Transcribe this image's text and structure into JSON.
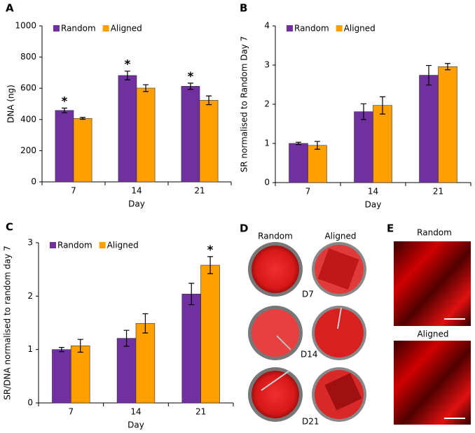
{
  "chart_data": [
    {
      "type": "bar",
      "panel_label": "A",
      "ylabel": "DNA (ng)",
      "xlabel": "Day",
      "categories": [
        "7",
        "14",
        "21"
      ],
      "series": [
        {
          "name": "Random",
          "color": "#7030a0",
          "values": [
            458,
            682,
            613
          ],
          "errors": [
            15,
            28,
            20
          ],
          "annotations": [
            "*",
            "*",
            "*"
          ]
        },
        {
          "name": "Aligned",
          "color": "#ffa000",
          "values": [
            407,
            601,
            523
          ],
          "errors": [
            6,
            22,
            28
          ]
        }
      ],
      "ylim": [
        0,
        1000
      ],
      "yticks": [
        0,
        200,
        400,
        600,
        800,
        1000
      ],
      "legend": "top-left"
    },
    {
      "type": "bar",
      "panel_label": "B",
      "ylabel": "SR normalised to Random Day 7",
      "xlabel": "Day",
      "categories": [
        "7",
        "14",
        "21"
      ],
      "series": [
        {
          "name": "Random",
          "color": "#7030a0",
          "values": [
            1.0,
            1.81,
            2.74
          ],
          "errors": [
            0.03,
            0.2,
            0.25
          ]
        },
        {
          "name": "Aligned",
          "color": "#ffa000",
          "values": [
            0.95,
            1.97,
            2.96
          ],
          "errors": [
            0.1,
            0.22,
            0.08
          ]
        }
      ],
      "ylim": [
        0,
        4
      ],
      "yticks": [
        0,
        1,
        2,
        3,
        4
      ],
      "legend": "top-left"
    },
    {
      "type": "bar",
      "panel_label": "C",
      "ylabel": "SR/DNA normalised to random day 7",
      "xlabel": "Day",
      "categories": [
        "7",
        "14",
        "21"
      ],
      "series": [
        {
          "name": "Random",
          "color": "#7030a0",
          "values": [
            1.0,
            1.21,
            2.04
          ],
          "errors": [
            0.04,
            0.15,
            0.2
          ]
        },
        {
          "name": "Aligned",
          "color": "#ffa000",
          "values": [
            1.07,
            1.49,
            2.58
          ],
          "errors": [
            0.12,
            0.18,
            0.16
          ],
          "annotations": [
            null,
            null,
            "*"
          ]
        }
      ],
      "ylim": [
        0,
        3
      ],
      "yticks": [
        0,
        1,
        2,
        3
      ],
      "legend": "top-left"
    }
  ],
  "image_panels": [
    {
      "label": "D",
      "columns": [
        "Random",
        "Aligned"
      ],
      "rows": [
        "D7",
        "D14",
        "D21"
      ]
    },
    {
      "label": "E",
      "images": [
        "Random",
        "Aligned"
      ]
    }
  ]
}
